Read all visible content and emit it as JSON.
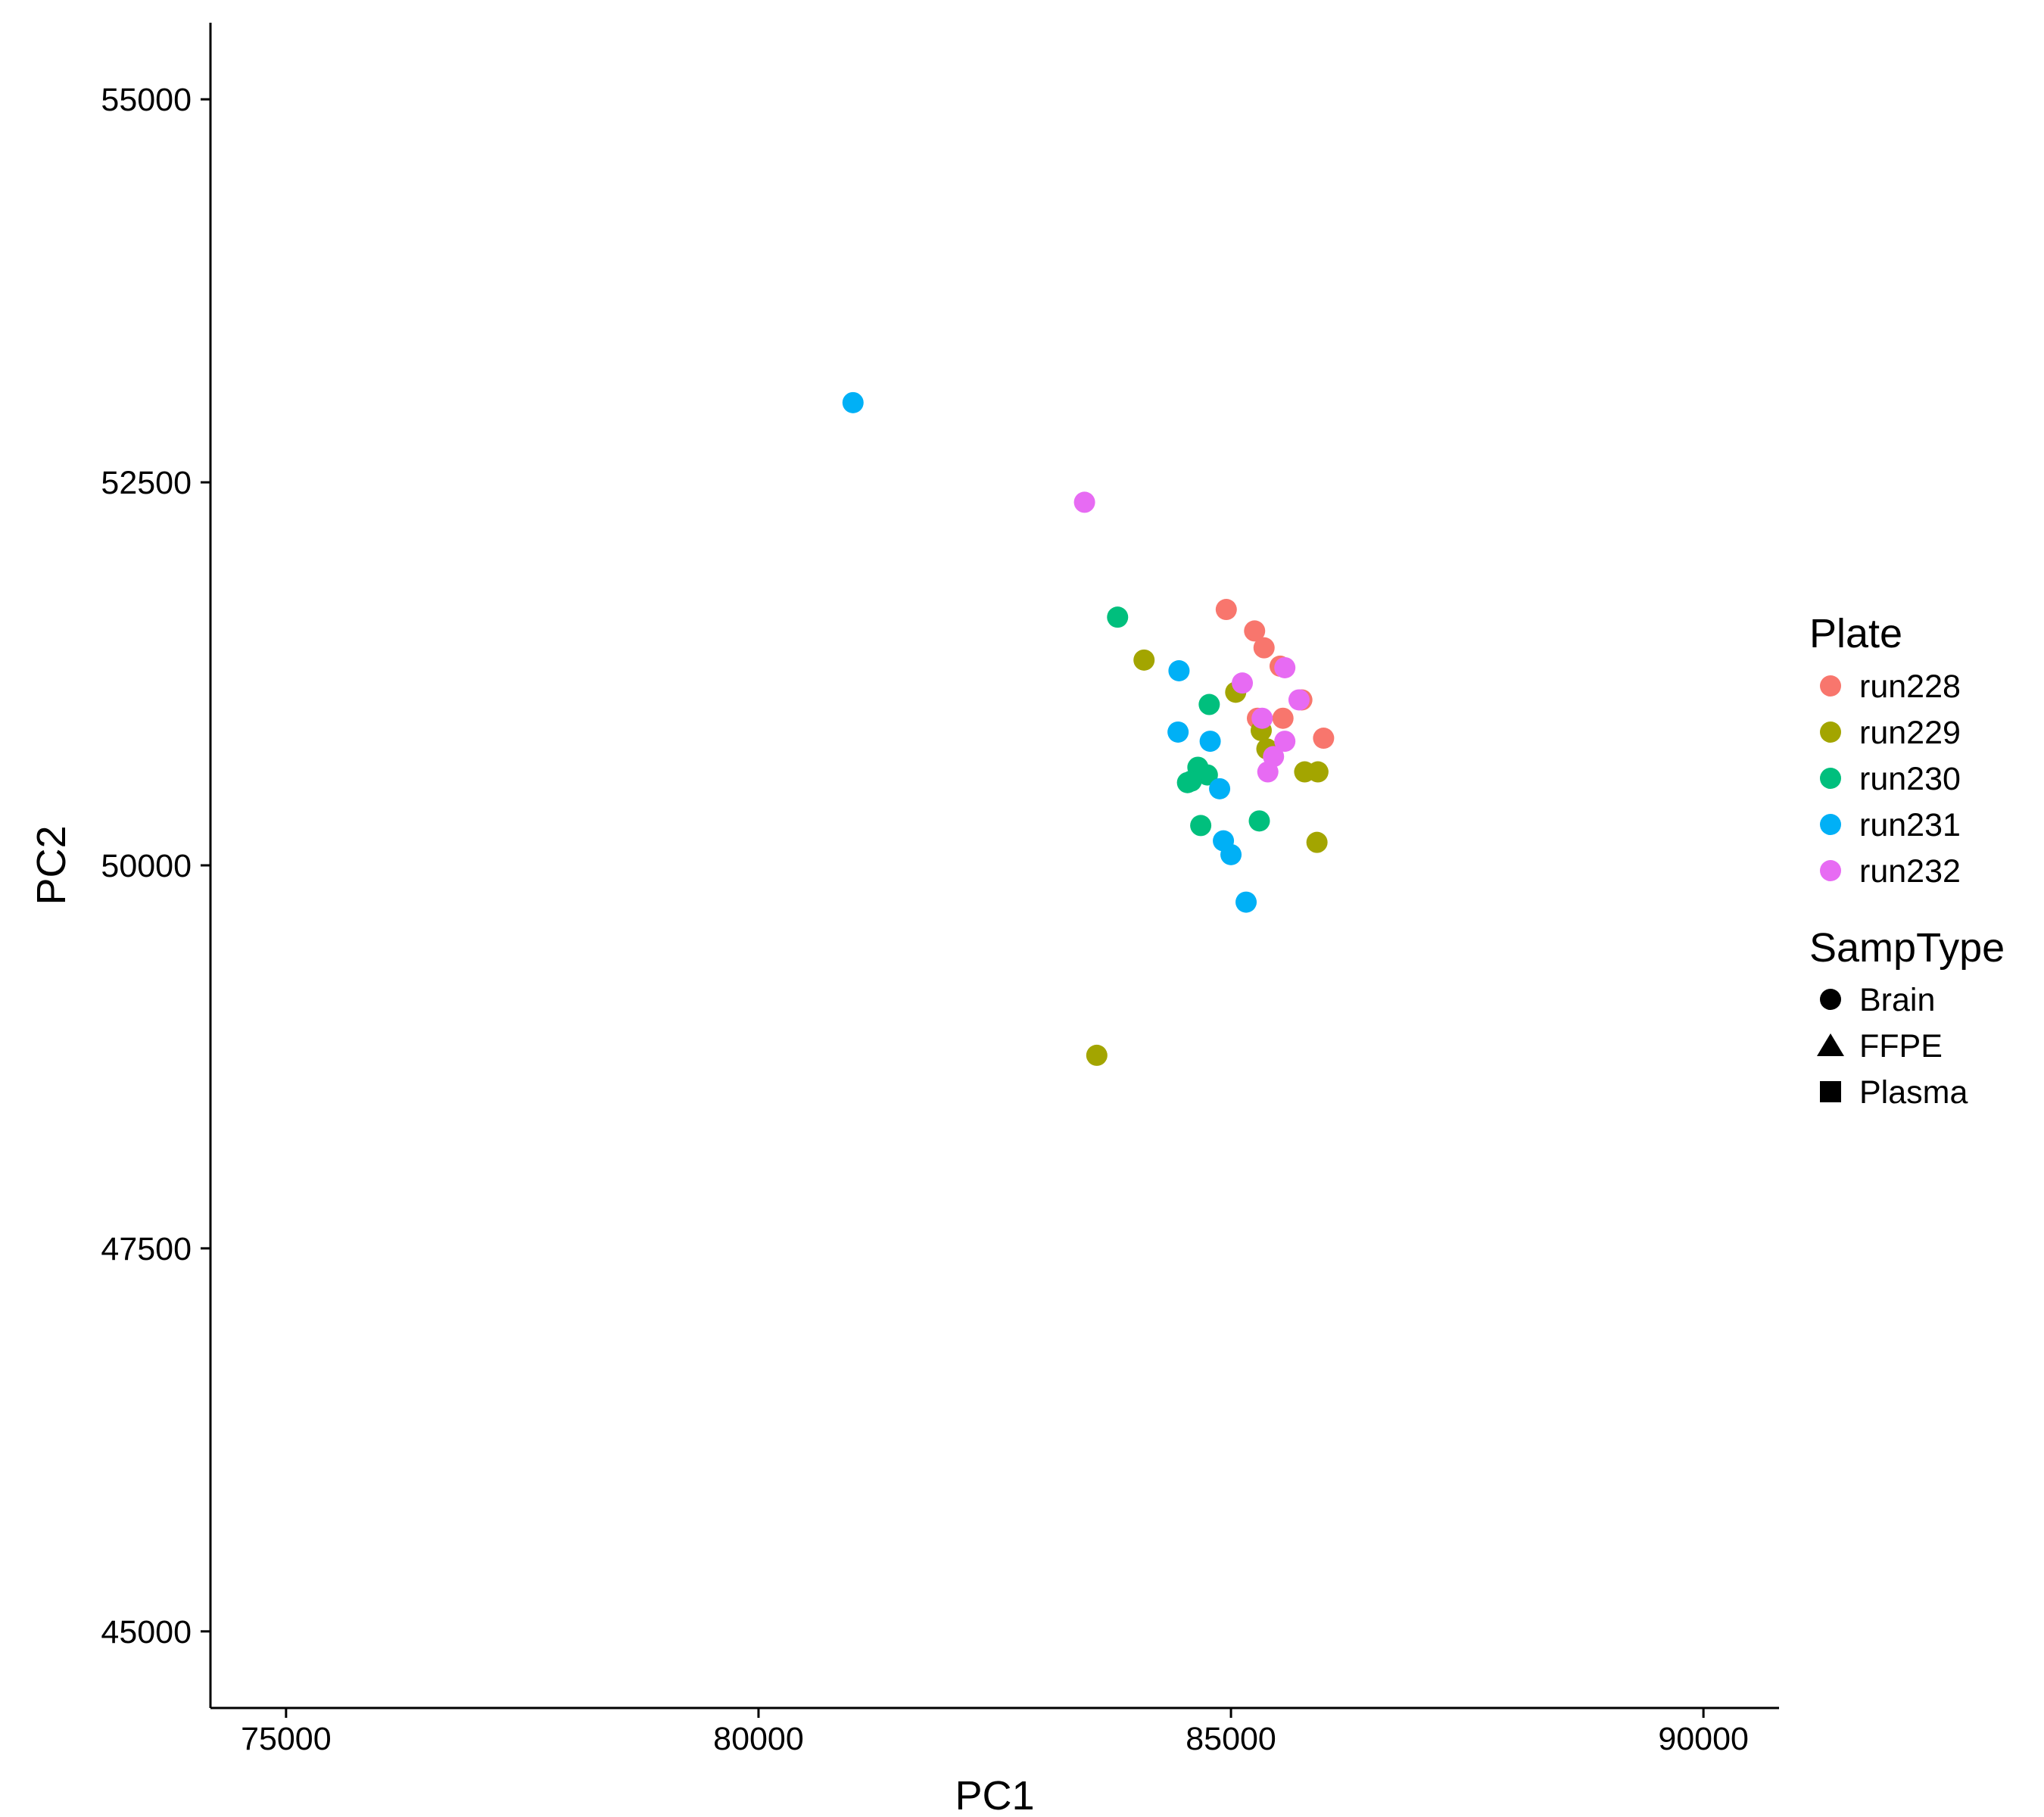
{
  "chart_data": {
    "type": "scatter",
    "title": "",
    "xlabel": "PC1",
    "ylabel": "PC2",
    "xlim": [
      74200,
      90800
    ],
    "ylim": [
      44500,
      55500
    ],
    "x_ticks": [
      75000,
      80000,
      85000,
      90000
    ],
    "y_ticks": [
      45000,
      47500,
      50000,
      52500,
      55000
    ],
    "grid": false,
    "legend": {
      "placement": "right",
      "color_title": "Plate",
      "shape_title": "SampType",
      "plates": [
        {
          "name": "run228",
          "color": "#F8766D"
        },
        {
          "name": "run229",
          "color": "#A3A500"
        },
        {
          "name": "run230",
          "color": "#00BF7D"
        },
        {
          "name": "run231",
          "color": "#00B0F6"
        },
        {
          "name": "run232",
          "color": "#E76BF3"
        }
      ],
      "shapes": [
        {
          "name": "Brain",
          "shape": "circle"
        },
        {
          "name": "FFPE",
          "shape": "triangle"
        },
        {
          "name": "Plasma",
          "shape": "square"
        }
      ]
    },
    "series": [
      {
        "name": "run228",
        "shape": "circle",
        "x": [
          84950,
          85250,
          85350,
          85520,
          85750,
          85550,
          85980,
          85280
        ],
        "y": [
          51670,
          51530,
          51420,
          51300,
          51080,
          50960,
          50830,
          50960
        ]
      },
      {
        "name": "run229",
        "shape": "circle",
        "x": [
          84080,
          85050,
          85320,
          85380,
          85780,
          85920,
          85910,
          83580
        ],
        "y": [
          51340,
          51130,
          50880,
          50760,
          50610,
          50610,
          50150,
          48760
        ]
      },
      {
        "name": "run230",
        "shape": "circle",
        "x": [
          83800,
          84770,
          84650,
          84750,
          84580,
          84540,
          84680,
          85300
        ],
        "y": [
          51620,
          51050,
          50640,
          50590,
          50550,
          50540,
          50260,
          50290
        ]
      },
      {
        "name": "run231",
        "shape": "circle",
        "x": [
          81000,
          84450,
          84440,
          84780,
          84880,
          84920,
          85000,
          85160
        ],
        "y": [
          53020,
          51270,
          50870,
          50810,
          50500,
          50160,
          50070,
          49760
        ]
      },
      {
        "name": "run232",
        "shape": "circle",
        "x": [
          83450,
          85570,
          85120,
          85720,
          85330,
          85570,
          85450,
          85390
        ],
        "y": [
          52370,
          51290,
          51190,
          51080,
          50960,
          50810,
          50710,
          50610
        ]
      }
    ]
  }
}
